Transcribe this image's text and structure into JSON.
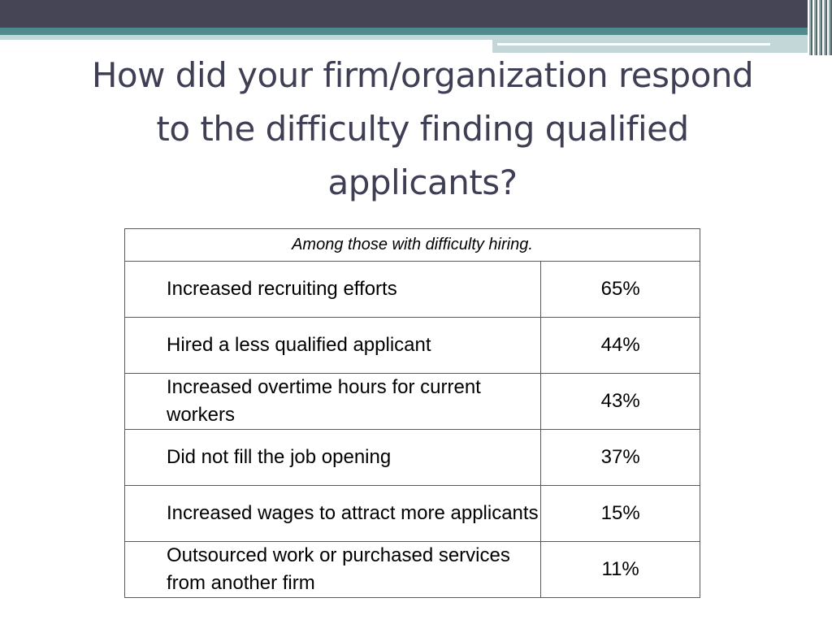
{
  "slide": {
    "title": "How did your firm/organization respond to the difficulty finding qualified applicants?"
  },
  "table": {
    "caption": "Among those with difficulty hiring.",
    "rows": [
      {
        "label": "Increased recruiting efforts",
        "value": "65%"
      },
      {
        "label": "Hired a less qualified applicant",
        "value": "44%"
      },
      {
        "label": "Increased overtime hours for current workers",
        "value": "43%"
      },
      {
        "label": "Did not fill the job opening",
        "value": "37%"
      },
      {
        "label": "Increased wages to attract more applicants",
        "value": "15%"
      },
      {
        "label": "Outsourced work or purchased services from another firm",
        "value": "11%"
      }
    ]
  },
  "colors": {
    "header_band": "#454556",
    "accent_teal": "#4f8a8c",
    "accent_light": "#c3d6d8",
    "title_text": "#3e3e55"
  }
}
